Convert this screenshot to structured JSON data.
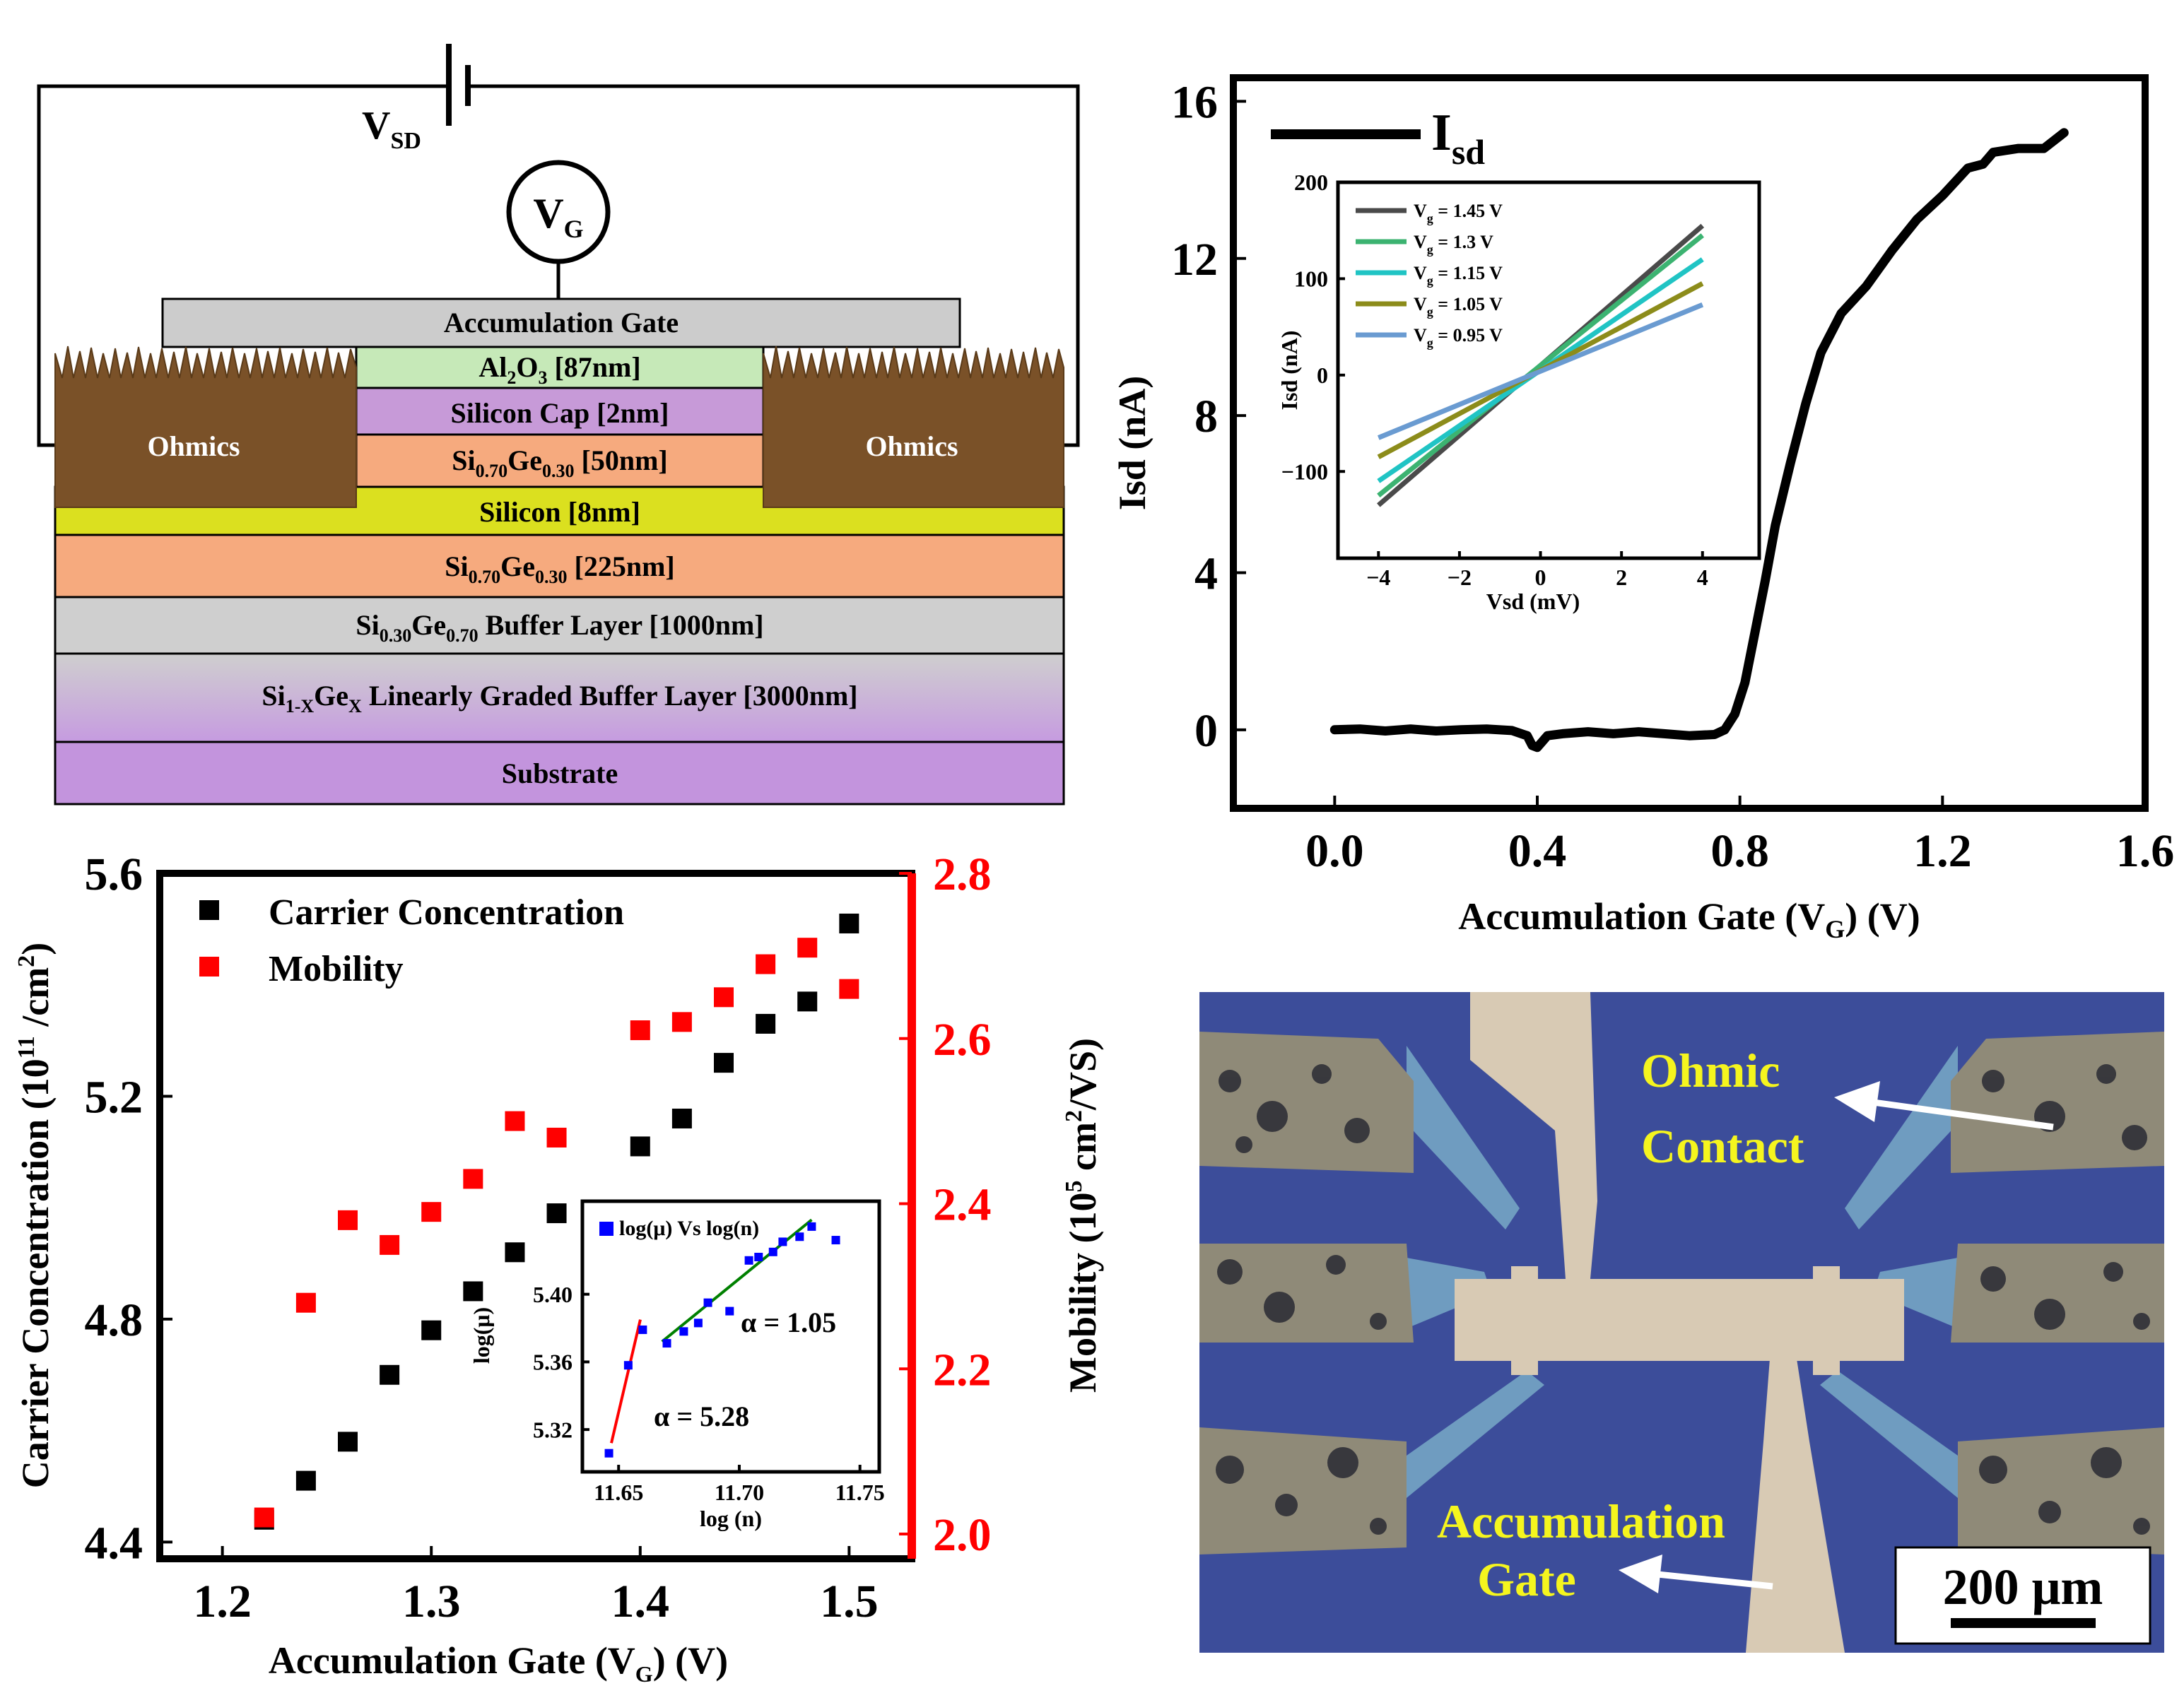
{
  "schematic": {
    "vsd_label": "V",
    "vsd_sub": "SD",
    "vg_label": "V",
    "vg_sub": "G",
    "gate_label": "Accumulation Gate",
    "ohmics_label": "Ohmics",
    "layers": {
      "al2o3": [
        "Al",
        "2",
        "O",
        "3",
        " [87nm]"
      ],
      "si_cap": "Silicon Cap [2nm]",
      "sige50": [
        "Si",
        "0.70",
        "Ge",
        "0.30",
        " [50nm]"
      ],
      "silicon8": "Silicon [8nm]",
      "sige225": [
        "Si",
        "0.70",
        "Ge",
        "0.30",
        " [225nm]"
      ],
      "buffer": [
        "Si",
        "0.30",
        "Ge",
        "0.70",
        " Buffer Layer [1000nm]"
      ],
      "graded": [
        "Si",
        "1-X",
        "Ge",
        "X",
        " Linearly Graded Buffer Layer [3000nm]"
      ],
      "substrate": "Substrate"
    }
  },
  "micrograph": {
    "ohmic_label_1": "Ohmic",
    "ohmic_label_2": "Contact",
    "gate_label_1": "Accumulation",
    "gate_label_2": "Gate",
    "scale_label": "200 μm"
  },
  "chart_data": [
    {
      "type": "line",
      "legend": [
        "I",
        "sd"
      ],
      "xlabel": [
        "Accumulation Gate (V",
        "G",
        ") (V)"
      ],
      "ylabel": "Isd (nA)",
      "xlim": [
        -0.2,
        1.6
      ],
      "ylim": [
        -2,
        16.6
      ],
      "xticks": [
        "0.0",
        "0.4",
        "0.8",
        "1.2",
        "1.6"
      ],
      "xtick_vals": [
        0,
        0.4,
        0.8,
        1.2,
        1.6
      ],
      "yticks": [
        "0",
        "4",
        "8",
        "12",
        "16"
      ],
      "ytick_vals": [
        0,
        4,
        8,
        12,
        16
      ],
      "series": [
        {
          "x": [
            0.0,
            0.05,
            0.1,
            0.15,
            0.2,
            0.25,
            0.3,
            0.35,
            0.38,
            0.39,
            0.4,
            0.42,
            0.45,
            0.5,
            0.55,
            0.6,
            0.65,
            0.7,
            0.75,
            0.77,
            0.79,
            0.81,
            0.83,
            0.85,
            0.87,
            0.9,
            0.93,
            0.96,
            1.0,
            1.05,
            1.1,
            1.15,
            1.2,
            1.25,
            1.28,
            1.3,
            1.35,
            1.4,
            1.44
          ],
          "y": [
            0.0,
            0.02,
            -0.03,
            0.02,
            -0.03,
            0.0,
            0.02,
            -0.02,
            -0.15,
            -0.4,
            -0.45,
            -0.15,
            -0.1,
            -0.05,
            -0.1,
            -0.05,
            -0.1,
            -0.15,
            -0.12,
            0.0,
            0.4,
            1.2,
            2.5,
            3.8,
            5.2,
            6.8,
            8.3,
            9.6,
            10.6,
            11.3,
            12.2,
            13.0,
            13.6,
            14.3,
            14.4,
            14.7,
            14.8,
            14.8,
            15.2
          ]
        }
      ],
      "inset": {
        "xlabel": "Vsd (mV)",
        "ylabel": "Isd (nA)",
        "xlim": [
          -5,
          5.4
        ],
        "ylim": [
          -190,
          200
        ],
        "xticks": [
          "−4",
          "−2",
          "0",
          "2",
          "4"
        ],
        "xtick_vals": [
          -4,
          -2,
          0,
          2,
          4
        ],
        "yticks": [
          "−100",
          "0",
          "100",
          "200"
        ],
        "ytick_vals": [
          -100,
          0,
          100,
          200
        ],
        "series": [
          {
            "name": [
              "V",
              "g",
              " = 1.45 V"
            ],
            "color": "#4a4a4a",
            "x": [
              -4,
              4
            ],
            "y": [
              -135,
              155
            ]
          },
          {
            "name": [
              "V",
              "g",
              " = 1.3 V"
            ],
            "color": "#3cb371",
            "x": [
              -4,
              4
            ],
            "y": [
              -125,
              145
            ]
          },
          {
            "name": [
              "V",
              "g",
              " = 1.15 V"
            ],
            "color": "#20c4c4",
            "x": [
              -4,
              4
            ],
            "y": [
              -110,
              120
            ]
          },
          {
            "name": [
              "V",
              "g",
              " = 1.05 V"
            ],
            "color": "#8c8c1a",
            "x": [
              -4,
              4
            ],
            "y": [
              -85,
              95
            ]
          },
          {
            "name": [
              "V",
              "g",
              " = 0.95 V"
            ],
            "color": "#6a9bd1",
            "x": [
              -4,
              4
            ],
            "y": [
              -65,
              73
            ]
          }
        ]
      }
    },
    {
      "type": "scatter",
      "xlabel": [
        "Accumulation Gate (V",
        "G",
        ") (V)"
      ],
      "ylabel_left": [
        "Carrier Concentration (10",
        "11",
        " /cm",
        "2",
        ")"
      ],
      "ylabel_right": [
        "Mobility (10",
        "5",
        " cm",
        "2",
        "/VS)"
      ],
      "xlim": [
        1.17,
        1.53
      ],
      "ylim_left": [
        4.37,
        5.6
      ],
      "ylim_right": [
        1.97,
        2.8
      ],
      "xticks": [
        "1.2",
        "1.3",
        "1.4",
        "1.5"
      ],
      "xtick_vals": [
        1.2,
        1.3,
        1.4,
        1.5
      ],
      "yticks_left": [
        "4.4",
        "4.8",
        "5.2",
        "5.6"
      ],
      "ytick_vals_left": [
        4.4,
        4.8,
        5.2,
        5.6
      ],
      "yticks_right": [
        "2.0",
        "2.2",
        "2.4",
        "2.6",
        "2.8"
      ],
      "ytick_vals_right": [
        2.0,
        2.2,
        2.4,
        2.6,
        2.8
      ],
      "series": [
        {
          "name": "Carrier Concentration",
          "color": "#000000",
          "axis": "left",
          "x": [
            1.22,
            1.24,
            1.26,
            1.28,
            1.3,
            1.32,
            1.34,
            1.36,
            1.4,
            1.42,
            1.44,
            1.46,
            1.48,
            1.5
          ],
          "y": [
            4.44,
            4.51,
            4.58,
            4.7,
            4.78,
            4.85,
            4.92,
            4.99,
            5.11,
            5.16,
            5.26,
            5.33,
            5.37,
            5.51
          ]
        },
        {
          "name": "Mobility",
          "color": "#ff0000",
          "axis": "right",
          "x": [
            1.22,
            1.24,
            1.26,
            1.28,
            1.3,
            1.32,
            1.34,
            1.36,
            1.4,
            1.42,
            1.44,
            1.46,
            1.48,
            1.5
          ],
          "y": [
            2.02,
            2.28,
            2.38,
            2.35,
            2.39,
            2.43,
            2.5,
            2.48,
            2.61,
            2.62,
            2.65,
            2.69,
            2.71,
            2.66
          ]
        }
      ],
      "inset": {
        "legend": "log(μ) Vs log(n)",
        "xlabel": "log (n)",
        "ylabel": "log(μ)",
        "xlim": [
          11.635,
          11.758
        ],
        "ylim": [
          5.295,
          5.455
        ],
        "xticks": [
          "11.65",
          "11.70",
          "11.75"
        ],
        "xtick_vals": [
          11.65,
          11.7,
          11.75
        ],
        "yticks": [
          "5.32",
          "5.36",
          "5.40"
        ],
        "ytick_vals": [
          5.32,
          5.36,
          5.4
        ],
        "points": {
          "x": [
            11.646,
            11.654,
            11.66,
            11.67,
            11.677,
            11.683,
            11.687,
            11.696,
            11.704,
            11.708,
            11.714,
            11.718,
            11.725,
            11.73,
            11.74
          ],
          "y": [
            5.306,
            5.358,
            5.379,
            5.371,
            5.378,
            5.383,
            5.395,
            5.39,
            5.42,
            5.422,
            5.425,
            5.431,
            5.434,
            5.44,
            5.432
          ]
        },
        "fits": [
          {
            "color": "#ff0000",
            "x": [
              11.647,
              11.659
            ],
            "y": [
              5.312,
              5.385
            ],
            "label": "α = 5.28"
          },
          {
            "color": "#008000",
            "x": [
              11.668,
              11.73
            ],
            "y": [
              5.372,
              5.444
            ],
            "label": "α = 1.05"
          }
        ]
      }
    }
  ]
}
